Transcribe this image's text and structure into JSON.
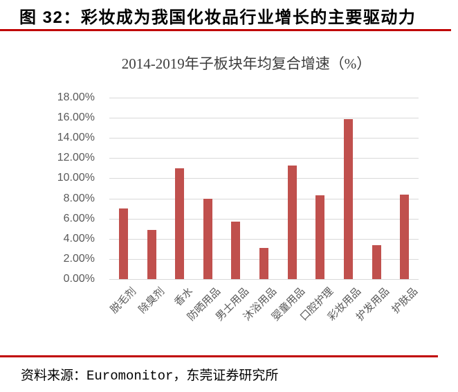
{
  "header": {
    "title": "图 32：彩妆成为我国化妆品行业增长的主要驱动力"
  },
  "footer": {
    "source": "资料来源：Euromonitor，东莞证券研究所"
  },
  "colors": {
    "accent_rule": "#C00000",
    "bar": "#C0504D",
    "gridline": "#D9D9D9",
    "axis_text": "#595959",
    "chart_title_text": "#3D3D3D",
    "figure_title_text": "#000000"
  },
  "chart_data": {
    "type": "bar",
    "title": "2014-2019年子板块年均复合增速（%）",
    "categories": [
      "脱毛剂",
      "除臭剂",
      "香水",
      "防晒用品",
      "男士用品",
      "沐浴用品",
      "婴童用品",
      "口腔护理",
      "彩妆用品",
      "护发用品",
      "护肤品"
    ],
    "values": [
      7.0,
      4.9,
      11.0,
      8.0,
      5.7,
      3.1,
      11.3,
      8.3,
      15.9,
      3.4,
      8.4
    ],
    "unit": "%",
    "xlabel": "",
    "ylabel": "",
    "ylim": [
      0,
      18
    ],
    "ytick_step": 2,
    "ytick_labels": [
      "18.00%",
      "16.00%",
      "14.00%",
      "12.00%",
      "10.00%",
      "8.00%",
      "6.00%",
      "4.00%",
      "2.00%",
      "0.00%"
    ],
    "grid": true,
    "legend": "none"
  }
}
